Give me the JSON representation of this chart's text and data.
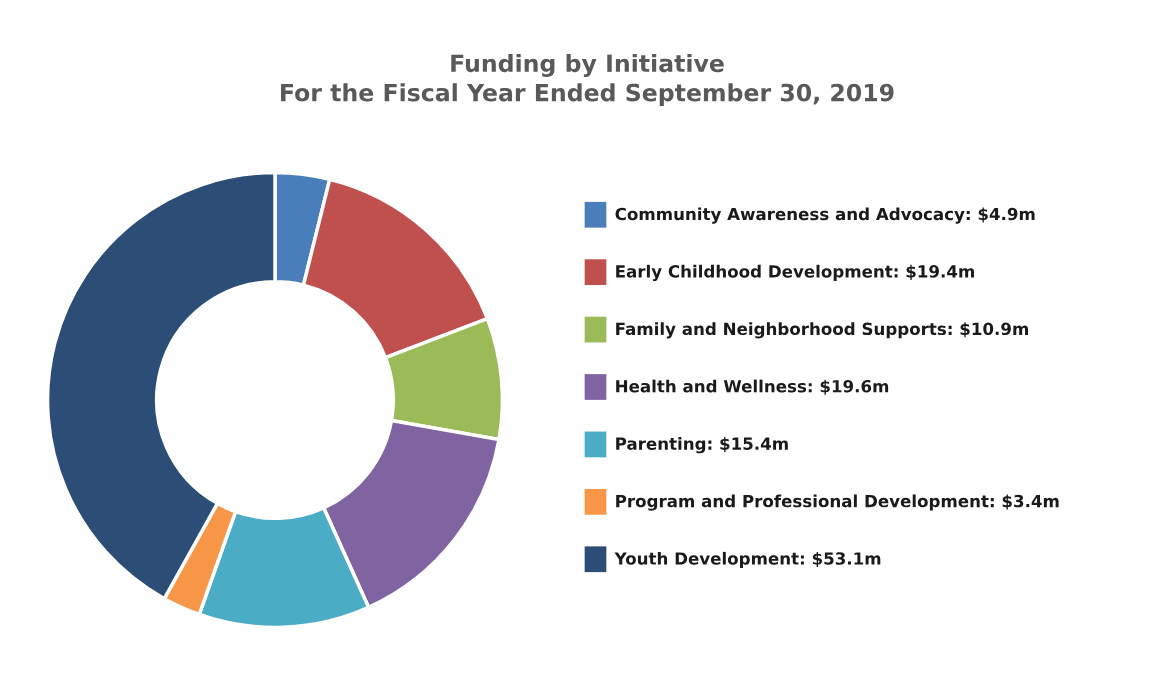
{
  "chart_data": {
    "type": "donut",
    "title": "Funding by Initiative\nFor the Fiscal Year Ended September 30, 2019",
    "categories": [
      "Community Awareness and Advocacy: $4.9m",
      "Early Childhood Development: $19.4m",
      "Family and Neighborhood Supports: $10.9m",
      "Health and Wellness: $19.6m",
      "Parenting: $15.4m",
      "Program and Professional Development: $3.4m",
      "Youth Development: $53.1m"
    ],
    "values": [
      4.9,
      19.4,
      10.9,
      19.6,
      15.4,
      3.4,
      53.1
    ],
    "colors": [
      "#4a7ebb",
      "#c0504d",
      "#9bbb59",
      "#8064a2",
      "#4bacc6",
      "#f79646",
      "#2c4d75"
    ],
    "legend": "right"
  }
}
